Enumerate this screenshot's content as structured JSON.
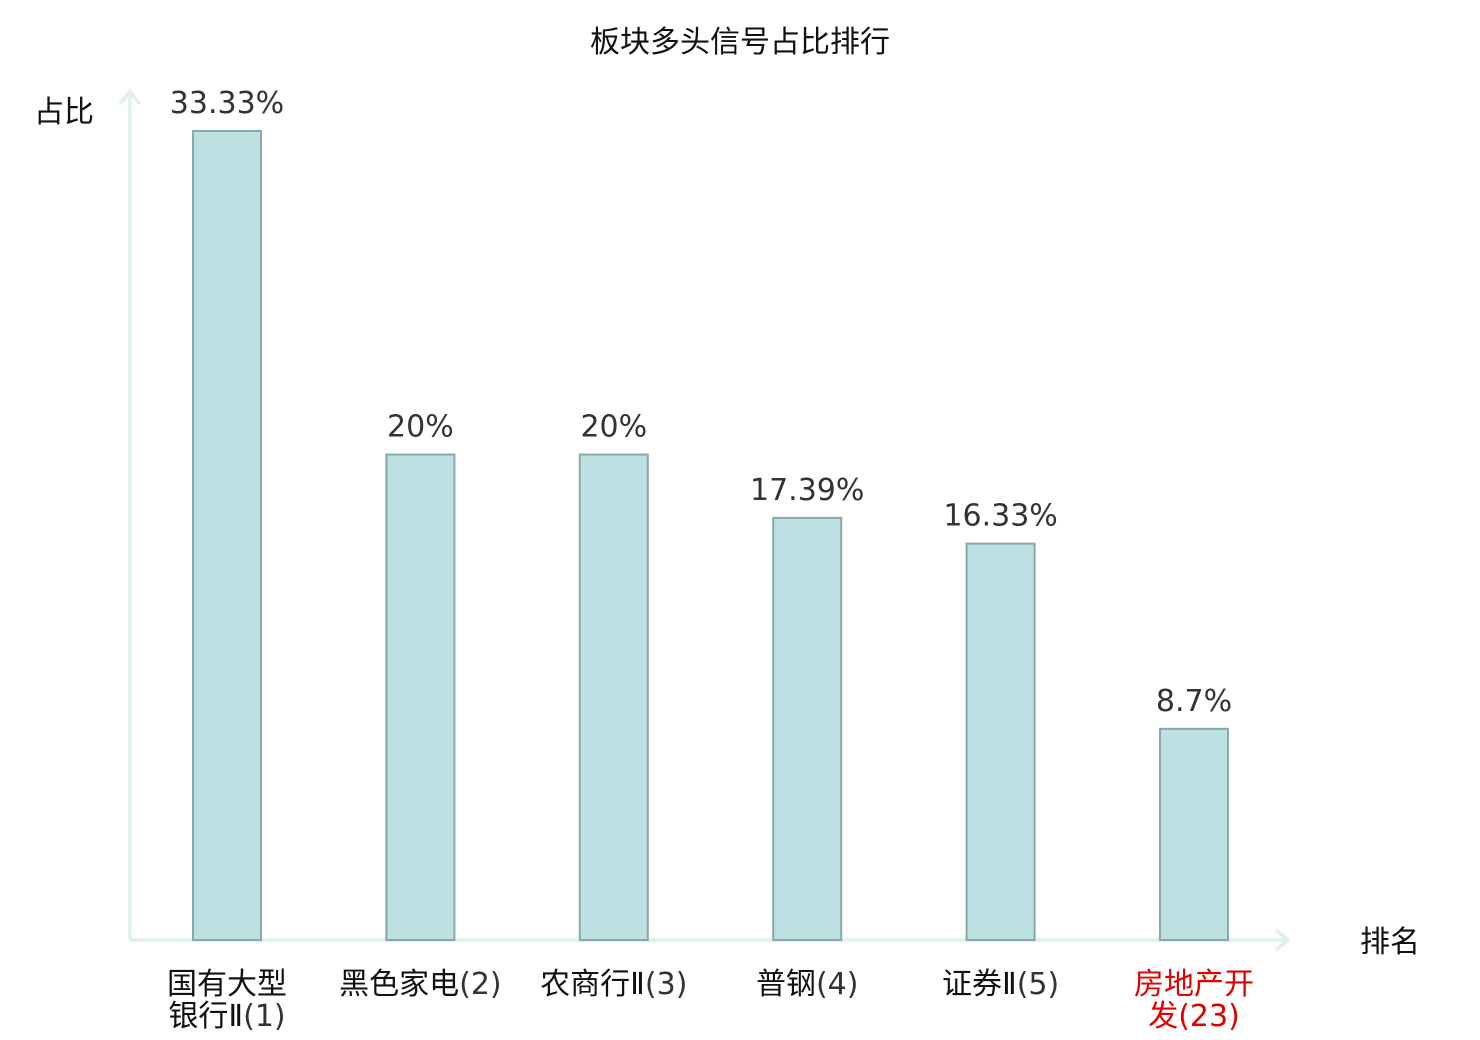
{
  "chart_data": {
    "type": "bar",
    "title": "板块多头信号占比排行",
    "xlabel": "排名",
    "ylabel": "占比",
    "ylim": [
      0,
      35
    ],
    "grid": false,
    "legend": "none",
    "categories": [
      [
        "国有大型",
        "银行Ⅱ(1)"
      ],
      [
        "黑色家电(2)"
      ],
      [
        "农商行Ⅱ(3)"
      ],
      [
        "普钢(4)"
      ],
      [
        "证券Ⅱ(5)"
      ],
      [
        "房地产开",
        "发(23)"
      ]
    ],
    "values": [
      33.33,
      20,
      20,
      17.39,
      16.33,
      8.7
    ],
    "value_labels": [
      "33.33%",
      "20%",
      "20%",
      "17.39%",
      "16.33%",
      "8.7%"
    ],
    "highlight_index": 5,
    "colors": {
      "bar_fill": "#bde0e3",
      "bar_stroke": "#8aa8aa",
      "axis": "#dff2ef",
      "text": "#111111",
      "value_text": "#333333",
      "highlight": "#e00000"
    }
  }
}
